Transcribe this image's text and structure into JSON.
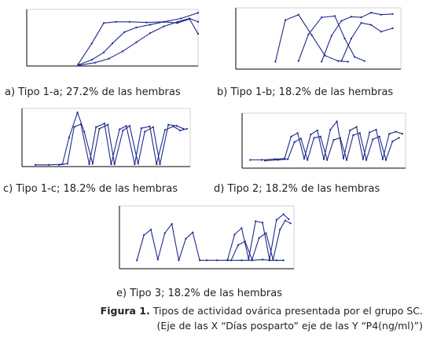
{
  "figure": {
    "label": "Figura 1.",
    "caption_line1": "Tipos de actividad ovárica presentada por el grupo SC.",
    "caption_line2": "(Eje de las X “Días posparto” eje de las Y “P4(ng/ml)”)"
  },
  "colors": {
    "series": "#1f2a8c",
    "axis": "#000000",
    "frame": "#c8c8c8"
  },
  "chart_data": [
    {
      "type": "line",
      "caption": "a) Tipo 1-a; 27.2% de las hembras",
      "title": "",
      "xlabel": "",
      "ylabel": "",
      "x_ticks": [],
      "y_ticks": [],
      "xlim": [
        0,
        100
      ],
      "ylim": [
        0,
        10
      ],
      "grid": false,
      "series": [
        {
          "x": [
            30,
            38,
            45,
            52,
            60,
            70,
            80,
            90,
            100
          ],
          "y": [
            0.3,
            4,
            7.6,
            7.8,
            7.8,
            7.7,
            7.8,
            8.4,
            9.4
          ]
        },
        {
          "x": [
            30,
            38,
            45,
            50,
            57,
            64,
            72,
            80,
            88,
            95,
            100
          ],
          "y": [
            0.2,
            1.1,
            2.4,
            4.0,
            6.0,
            6.8,
            7.3,
            7.8,
            7.6,
            8.3,
            5.7
          ]
        },
        {
          "x": [
            30,
            40,
            48,
            56,
            64,
            72,
            80,
            88,
            95,
            100
          ],
          "y": [
            0.1,
            0.6,
            1.3,
            2.6,
            4.2,
            5.8,
            7.0,
            7.8,
            8.4,
            7.8
          ]
        }
      ]
    },
    {
      "type": "line",
      "caption": "b) Tipo 1-b; 18.2% de las hembras",
      "title": "",
      "xlabel": "",
      "ylabel": "",
      "x_ticks": [],
      "y_ticks": [],
      "xlim": [
        0,
        100
      ],
      "ylim": [
        -1,
        8
      ],
      "grid": false,
      "series": [
        {
          "x": [
            24,
            30,
            38,
            46,
            54,
            62,
            68
          ],
          "y": [
            0.1,
            6.2,
            7.0,
            4.0,
            1.0,
            0.2,
            0.1
          ]
        },
        {
          "x": [
            38,
            44,
            52,
            60,
            66,
            72,
            78
          ],
          "y": [
            0.2,
            4.1,
            6.6,
            6.8,
            3.5,
            0.8,
            0.2
          ]
        },
        {
          "x": [
            52,
            58,
            64,
            70,
            76,
            82,
            88,
            95
          ],
          "y": [
            0.1,
            3.9,
            6.1,
            6.7,
            6.6,
            7.3,
            7.0,
            7.1
          ]
        },
        {
          "x": [
            64,
            70,
            76,
            82,
            88,
            95
          ],
          "y": [
            0.2,
            3.5,
            5.8,
            5.5,
            4.5,
            5.0
          ]
        }
      ]
    },
    {
      "type": "line",
      "caption": "c) Tipo 1-c; 18.2% de las hembras",
      "title": "",
      "xlabel": "",
      "ylabel": "",
      "x_ticks": [],
      "y_ticks": [],
      "xlim": [
        0,
        100
      ],
      "ylim": [
        0,
        10
      ],
      "grid": false,
      "series": [
        {
          "x": [
            8,
            16,
            24,
            28,
            33,
            37,
            42,
            46,
            51,
            55,
            60,
            64,
            69,
            73,
            78,
            82,
            87,
            92,
            96
          ],
          "y": [
            0.3,
            0.3,
            0.4,
            5.0,
            9.3,
            6.0,
            0.5,
            6.5,
            7.2,
            0.4,
            6.2,
            7.0,
            0.5,
            6.0,
            6.8,
            0.4,
            7.2,
            7.0,
            6.5
          ]
        },
        {
          "x": [
            22,
            27,
            31,
            35,
            40,
            44,
            49,
            53,
            58,
            62,
            67,
            71,
            76,
            80,
            85,
            90,
            94,
            98
          ],
          "y": [
            0.3,
            0.5,
            6.8,
            7.3,
            0.4,
            6.8,
            7.4,
            0.4,
            6.4,
            7.0,
            0.4,
            6.6,
            6.9,
            0.4,
            6.3,
            6.9,
            6.2,
            6.5
          ]
        }
      ]
    },
    {
      "type": "line",
      "caption": "d) Tipo 2; 18.2% de las hembras",
      "title": "",
      "xlabel": "",
      "ylabel": "",
      "x_ticks": [],
      "y_ticks": [],
      "xlim": [
        0,
        100
      ],
      "ylim": [
        -1,
        7
      ],
      "grid": false,
      "series": [
        {
          "x": [
            5,
            12,
            20,
            26,
            30,
            34,
            38,
            42,
            46,
            50,
            54,
            58,
            62,
            66,
            70,
            74,
            78,
            82,
            86,
            90,
            94,
            98
          ],
          "y": [
            0.2,
            0.2,
            0.3,
            0.4,
            3.6,
            4.1,
            0.4,
            3.9,
            4.5,
            0.3,
            4.6,
            5.8,
            0.4,
            4.5,
            5.0,
            0.3,
            4.2,
            4.6,
            0.3,
            4.0,
            4.3,
            4.0
          ]
        },
        {
          "x": [
            14,
            22,
            28,
            32,
            36,
            40,
            44,
            48,
            52,
            56,
            60,
            64,
            68,
            72,
            76,
            80,
            84,
            88,
            92,
            96
          ],
          "y": [
            0.1,
            0.2,
            0.3,
            2.8,
            3.3,
            0.2,
            3.4,
            3.6,
            0.2,
            3.1,
            3.4,
            0.2,
            3.8,
            4.1,
            0.2,
            3.2,
            3.6,
            0.2,
            2.9,
            3.4
          ]
        }
      ]
    },
    {
      "type": "line",
      "caption": "e) Tipo 3; 18.2% de las hembras",
      "title": "",
      "xlabel": "",
      "ylabel": "",
      "x_ticks": [],
      "y_ticks": [],
      "xlim": [
        0,
        100
      ],
      "ylim": [
        -1,
        8
      ],
      "grid": false,
      "series": [
        {
          "x": [
            10,
            14,
            18,
            22,
            26,
            30,
            34,
            38,
            42,
            46,
            50,
            56,
            62,
            70,
            76,
            82,
            86,
            90,
            94
          ],
          "y": [
            0.2,
            3.8,
            4.6,
            0.3,
            4.1,
            5.4,
            0.2,
            3.3,
            4.2,
            0.2,
            0.2,
            0.2,
            0.2,
            0.2,
            0.2,
            0.3,
            0.2,
            0.2,
            0.2
          ]
        },
        {
          "x": [
            62,
            66,
            70,
            74,
            78,
            82,
            86,
            90,
            94,
            97
          ],
          "y": [
            0.3,
            3.9,
            4.8,
            0.4,
            5.8,
            5.6,
            0.3,
            6.0,
            6.8,
            6.1
          ]
        },
        {
          "x": [
            64,
            68,
            72,
            76,
            80,
            84,
            88,
            92,
            95,
            98
          ],
          "y": [
            0.2,
            2.4,
            2.9,
            0.3,
            3.4,
            4.1,
            0.3,
            4.6,
            5.9,
            5.5
          ]
        }
      ]
    }
  ]
}
